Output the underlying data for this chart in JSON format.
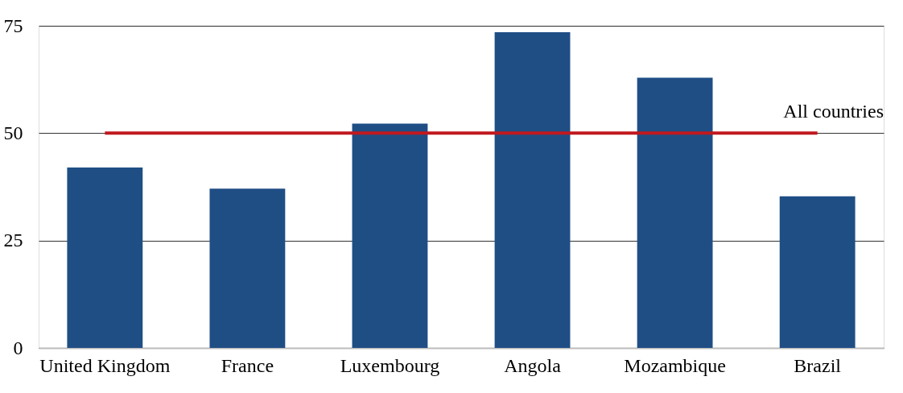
{
  "chart_data": {
    "type": "bar",
    "categories": [
      "United Kingdom",
      "France",
      "Luxembourg",
      "Angola",
      "Mozambique",
      "Brazil"
    ],
    "series": [
      {
        "color": "#1f4e85",
        "values": [
          42.0,
          37.1,
          52.2,
          73.5,
          62.9,
          35.3
        ]
      }
    ],
    "ylim": [
      0,
      75
    ],
    "yticks": [
      0,
      25,
      50,
      75
    ],
    "grid": "y",
    "ref_lines": [
      {
        "axis": "y",
        "value": 50,
        "label": "All countries",
        "color": "#c0191f"
      }
    ]
  }
}
